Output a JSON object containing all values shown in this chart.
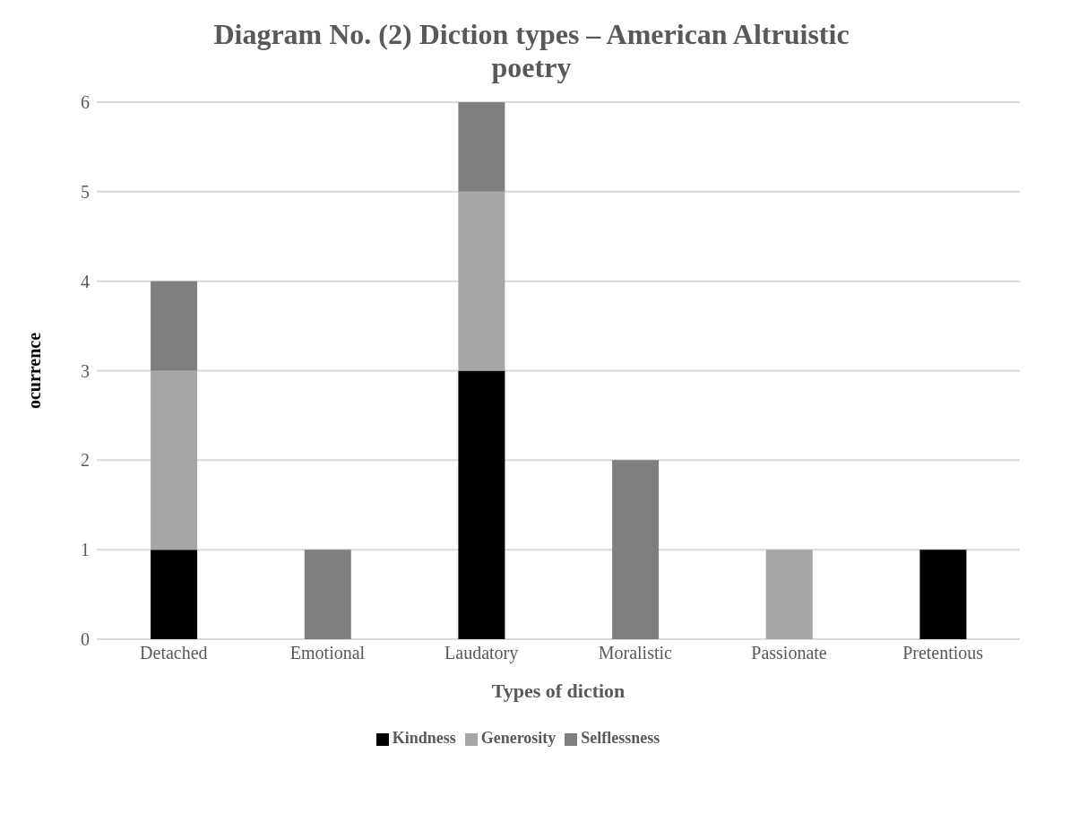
{
  "chart_data": {
    "type": "bar",
    "title": "Diagram No. (2) Diction types – American Altruistic poetry",
    "xlabel": "Types of diction",
    "ylabel": "ocurrence",
    "categories": [
      "Detached",
      "Emotional",
      "Laudatory",
      "Moralistic",
      "Passionate",
      "Pretentious"
    ],
    "series": [
      {
        "name": "Kindness",
        "color": "#000000",
        "values": [
          1,
          0,
          3,
          0,
          0,
          1
        ]
      },
      {
        "name": "Generosity",
        "color": "#a6a6a6",
        "values": [
          2,
          0,
          2,
          0,
          1,
          0
        ]
      },
      {
        "name": "Selflessness",
        "color": "#7f7f7f",
        "values": [
          1,
          1,
          1,
          2,
          0,
          0
        ]
      }
    ],
    "stacked": true,
    "ylim": [
      0,
      6
    ],
    "yticks": [
      0,
      1,
      2,
      3,
      4,
      5,
      6
    ],
    "grid": "y",
    "legend": "bottom"
  }
}
